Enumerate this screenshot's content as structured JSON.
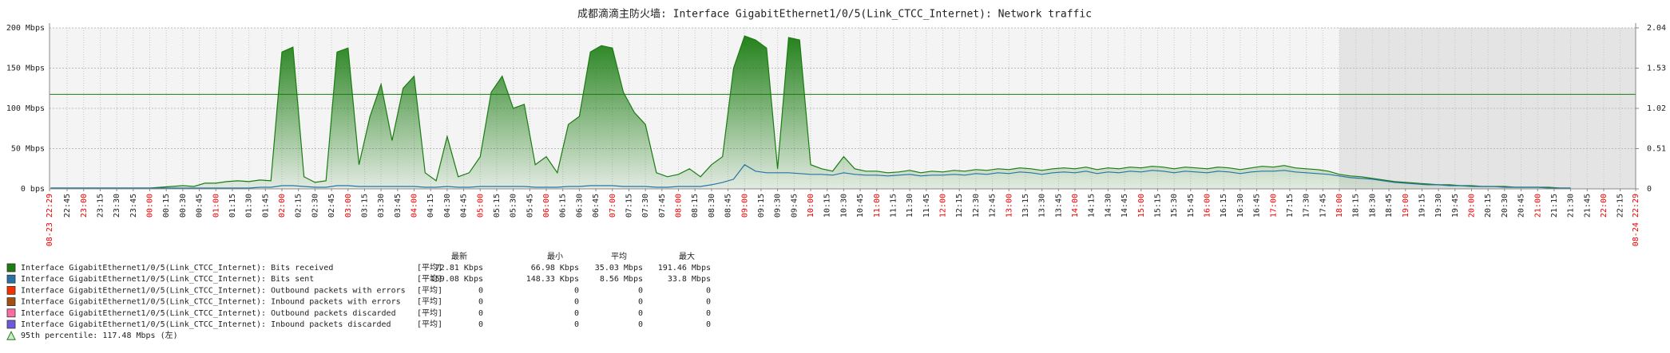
{
  "chart_data": {
    "type": "area",
    "title": "成都滴滴主防火墙: Interface GigabitEthernet1/0/5(Link_CTCC_Internet): Network traffic",
    "xlim": [
      "08-23 22:29",
      "08-24 22:29"
    ],
    "xticks": [
      "08-23 22:29",
      "22:45",
      "23:00",
      "23:15",
      "23:30",
      "23:45",
      "00:00",
      "00:15",
      "00:30",
      "00:45",
      "01:00",
      "01:15",
      "01:30",
      "01:45",
      "02:00",
      "02:15",
      "02:30",
      "02:45",
      "03:00",
      "03:15",
      "03:30",
      "03:45",
      "04:00",
      "04:15",
      "04:30",
      "04:45",
      "05:00",
      "05:15",
      "05:30",
      "05:45",
      "06:00",
      "06:15",
      "06:30",
      "06:45",
      "07:00",
      "07:15",
      "07:30",
      "07:45",
      "08:00",
      "08:15",
      "08:30",
      "08:45",
      "09:00",
      "09:15",
      "09:30",
      "09:45",
      "10:00",
      "10:15",
      "10:30",
      "10:45",
      "11:00",
      "11:15",
      "11:30",
      "11:45",
      "12:00",
      "12:15",
      "12:30",
      "12:45",
      "13:00",
      "13:15",
      "13:30",
      "13:45",
      "14:00",
      "14:15",
      "14:30",
      "14:45",
      "15:00",
      "15:15",
      "15:30",
      "15:45",
      "16:00",
      "16:15",
      "16:30",
      "16:45",
      "17:00",
      "17:15",
      "17:30",
      "17:45",
      "18:00",
      "18:15",
      "18:30",
      "18:45",
      "19:00",
      "19:15",
      "19:30",
      "19:45",
      "20:00",
      "20:15",
      "20:30",
      "20:45",
      "21:00",
      "21:15",
      "21:30",
      "21:45",
      "22:00",
      "22:15",
      "08-24 22:29"
    ],
    "ylim": [
      0,
      200
    ],
    "yticks": [
      {
        "value": 0,
        "label": "0 bps"
      },
      {
        "value": 50,
        "label": "50 Mbps"
      },
      {
        "value": 100,
        "label": "100 Mbps"
      },
      {
        "value": 150,
        "label": "150 Mbps"
      },
      {
        "value": 200,
        "label": "200 Mbps"
      }
    ],
    "y2lim": [
      0,
      2.04
    ],
    "y2ticks": [
      0,
      0.51,
      1.02,
      1.53,
      2.04
    ],
    "grid": true,
    "x": [
      "22:30",
      "22:40",
      "22:50",
      "23:00",
      "23:10",
      "23:20",
      "23:30",
      "23:40",
      "23:50",
      "00:00",
      "00:10",
      "00:20",
      "00:30",
      "00:40",
      "00:50",
      "01:00",
      "01:10",
      "01:20",
      "01:30",
      "01:40",
      "01:50",
      "02:00",
      "02:10",
      "02:20",
      "02:30",
      "02:40",
      "02:50",
      "03:00",
      "03:10",
      "03:20",
      "03:30",
      "03:40",
      "03:50",
      "04:00",
      "04:10",
      "04:20",
      "04:30",
      "04:40",
      "04:50",
      "05:00",
      "05:10",
      "05:20",
      "05:30",
      "05:40",
      "05:50",
      "06:00",
      "06:10",
      "06:20",
      "06:30",
      "06:40",
      "06:50",
      "07:00",
      "07:10",
      "07:20",
      "07:30",
      "07:40",
      "07:50",
      "08:00",
      "08:10",
      "08:20",
      "08:30",
      "08:40",
      "08:50",
      "09:00",
      "09:10",
      "09:20",
      "09:30",
      "09:40",
      "09:50",
      "10:00",
      "10:10",
      "10:20",
      "10:30",
      "10:40",
      "10:50",
      "11:00",
      "11:10",
      "11:20",
      "11:30",
      "11:40",
      "11:50",
      "12:00",
      "12:10",
      "12:20",
      "12:30",
      "12:40",
      "12:50",
      "13:00",
      "13:10",
      "13:20",
      "13:30",
      "13:40",
      "13:50",
      "14:00",
      "14:10",
      "14:20",
      "14:30",
      "14:40",
      "14:50",
      "15:00",
      "15:10",
      "15:20",
      "15:30",
      "15:40",
      "15:50",
      "16:00",
      "16:10",
      "16:20",
      "16:30",
      "16:40",
      "16:50",
      "17:00",
      "17:10",
      "17:20",
      "17:30",
      "17:40",
      "17:50",
      "18:00",
      "18:10",
      "18:20",
      "18:30",
      "18:40",
      "18:50",
      "19:00",
      "19:10",
      "19:20",
      "19:30",
      "19:40",
      "19:50",
      "20:00",
      "20:10",
      "20:20",
      "20:30",
      "20:40",
      "20:50",
      "21:00",
      "21:10",
      "21:20",
      "21:30"
    ],
    "stat_headers": [
      "最新",
      "最小",
      "平均",
      "最大"
    ],
    "series": [
      {
        "name": "Interface GigabitEthernet1/0/5(Link_CTCC_Internet): Bits received",
        "color": "#1a7c11",
        "fill": true,
        "stat_func": "[平均]",
        "stats": [
          "72.81 Kbps",
          "66.98 Kbps",
          "35.03 Mbps",
          "191.46 Mbps"
        ],
        "values": [
          1,
          1,
          1,
          1,
          1,
          1,
          1,
          1,
          1,
          1,
          2,
          3,
          4,
          3,
          7,
          7,
          9,
          10,
          9,
          11,
          10,
          170,
          176,
          15,
          8,
          10,
          170,
          175,
          30,
          90,
          130,
          60,
          125,
          140,
          20,
          10,
          65,
          15,
          20,
          40,
          120,
          140,
          100,
          105,
          30,
          40,
          20,
          80,
          90,
          170,
          178,
          175,
          120,
          95,
          80,
          20,
          15,
          18,
          25,
          15,
          30,
          40,
          150,
          190,
          185,
          175,
          25,
          188,
          185,
          30,
          25,
          22,
          40,
          25,
          22,
          22,
          20,
          21,
          23,
          20,
          22,
          21,
          23,
          22,
          24,
          23,
          25,
          24,
          26,
          25,
          23,
          25,
          26,
          25,
          27,
          24,
          26,
          25,
          27,
          26,
          28,
          27,
          25,
          27,
          26,
          25,
          27,
          26,
          24,
          26,
          28,
          27,
          29,
          26,
          25,
          24,
          22,
          18,
          16,
          15,
          13,
          11,
          9,
          8,
          7,
          6,
          5,
          5,
          4,
          4,
          3,
          3,
          3,
          2,
          2,
          2,
          2,
          1,
          1
        ]
      },
      {
        "name": "Interface GigabitEthernet1/0/5(Link_CTCC_Internet): Bits sent",
        "color": "#2774a4",
        "fill": false,
        "stat_func": "[平均]",
        "stats": [
          "159.08 Kbps",
          "148.33 Kbps",
          "8.56 Mbps",
          "33.8 Mbps"
        ],
        "values": [
          1,
          1,
          1,
          1,
          1,
          1,
          1,
          1,
          1,
          1,
          1,
          1,
          1,
          1,
          1,
          1,
          1,
          1,
          1,
          2,
          2,
          4,
          4,
          3,
          2,
          2,
          4,
          4,
          3,
          3,
          3,
          3,
          3,
          3,
          2,
          2,
          3,
          2,
          2,
          3,
          3,
          3,
          3,
          3,
          2,
          2,
          2,
          3,
          3,
          4,
          4,
          4,
          3,
          3,
          3,
          2,
          2,
          3,
          3,
          3,
          5,
          8,
          12,
          30,
          22,
          20,
          20,
          20,
          19,
          18,
          18,
          17,
          20,
          18,
          17,
          17,
          16,
          17,
          18,
          16,
          17,
          17,
          18,
          17,
          19,
          18,
          20,
          19,
          21,
          20,
          18,
          20,
          21,
          20,
          22,
          19,
          21,
          20,
          22,
          21,
          23,
          22,
          20,
          22,
          21,
          20,
          22,
          21,
          19,
          21,
          22,
          22,
          23,
          21,
          20,
          19,
          18,
          16,
          14,
          13,
          12,
          10,
          8,
          7,
          6,
          5,
          5,
          4,
          4,
          3,
          3,
          3,
          2,
          2,
          2,
          2,
          1,
          1,
          1
        ]
      },
      {
        "name": "Interface GigabitEthernet1/0/5(Link_CTCC_Internet): Outbound packets with errors",
        "color": "#f63100",
        "stat_func": "[平均]",
        "stats": [
          "0",
          "0",
          "0",
          "0"
        ]
      },
      {
        "name": "Interface GigabitEthernet1/0/5(Link_CTCC_Internet): Inbound packets with errors",
        "color": "#a54f10",
        "stat_func": "[平均]",
        "stats": [
          "0",
          "0",
          "0",
          "0"
        ]
      },
      {
        "name": "Interface GigabitEthernet1/0/5(Link_CTCC_Internet): Outbound packets discarded",
        "color": "#fc6ea3",
        "stat_func": "[平均]",
        "stats": [
          "0",
          "0",
          "0",
          "0"
        ]
      },
      {
        "name": "Interface GigabitEthernet1/0/5(Link_CTCC_Internet): Inbound packets discarded",
        "color": "#6c59dc",
        "stat_func": "[平均]",
        "stats": [
          "0",
          "0",
          "0",
          "0"
        ]
      }
    ],
    "percentile": {
      "label": "95th percentile: 117.48 Mbps (左)",
      "value": 117.48,
      "color": "#1a7c11"
    }
  }
}
